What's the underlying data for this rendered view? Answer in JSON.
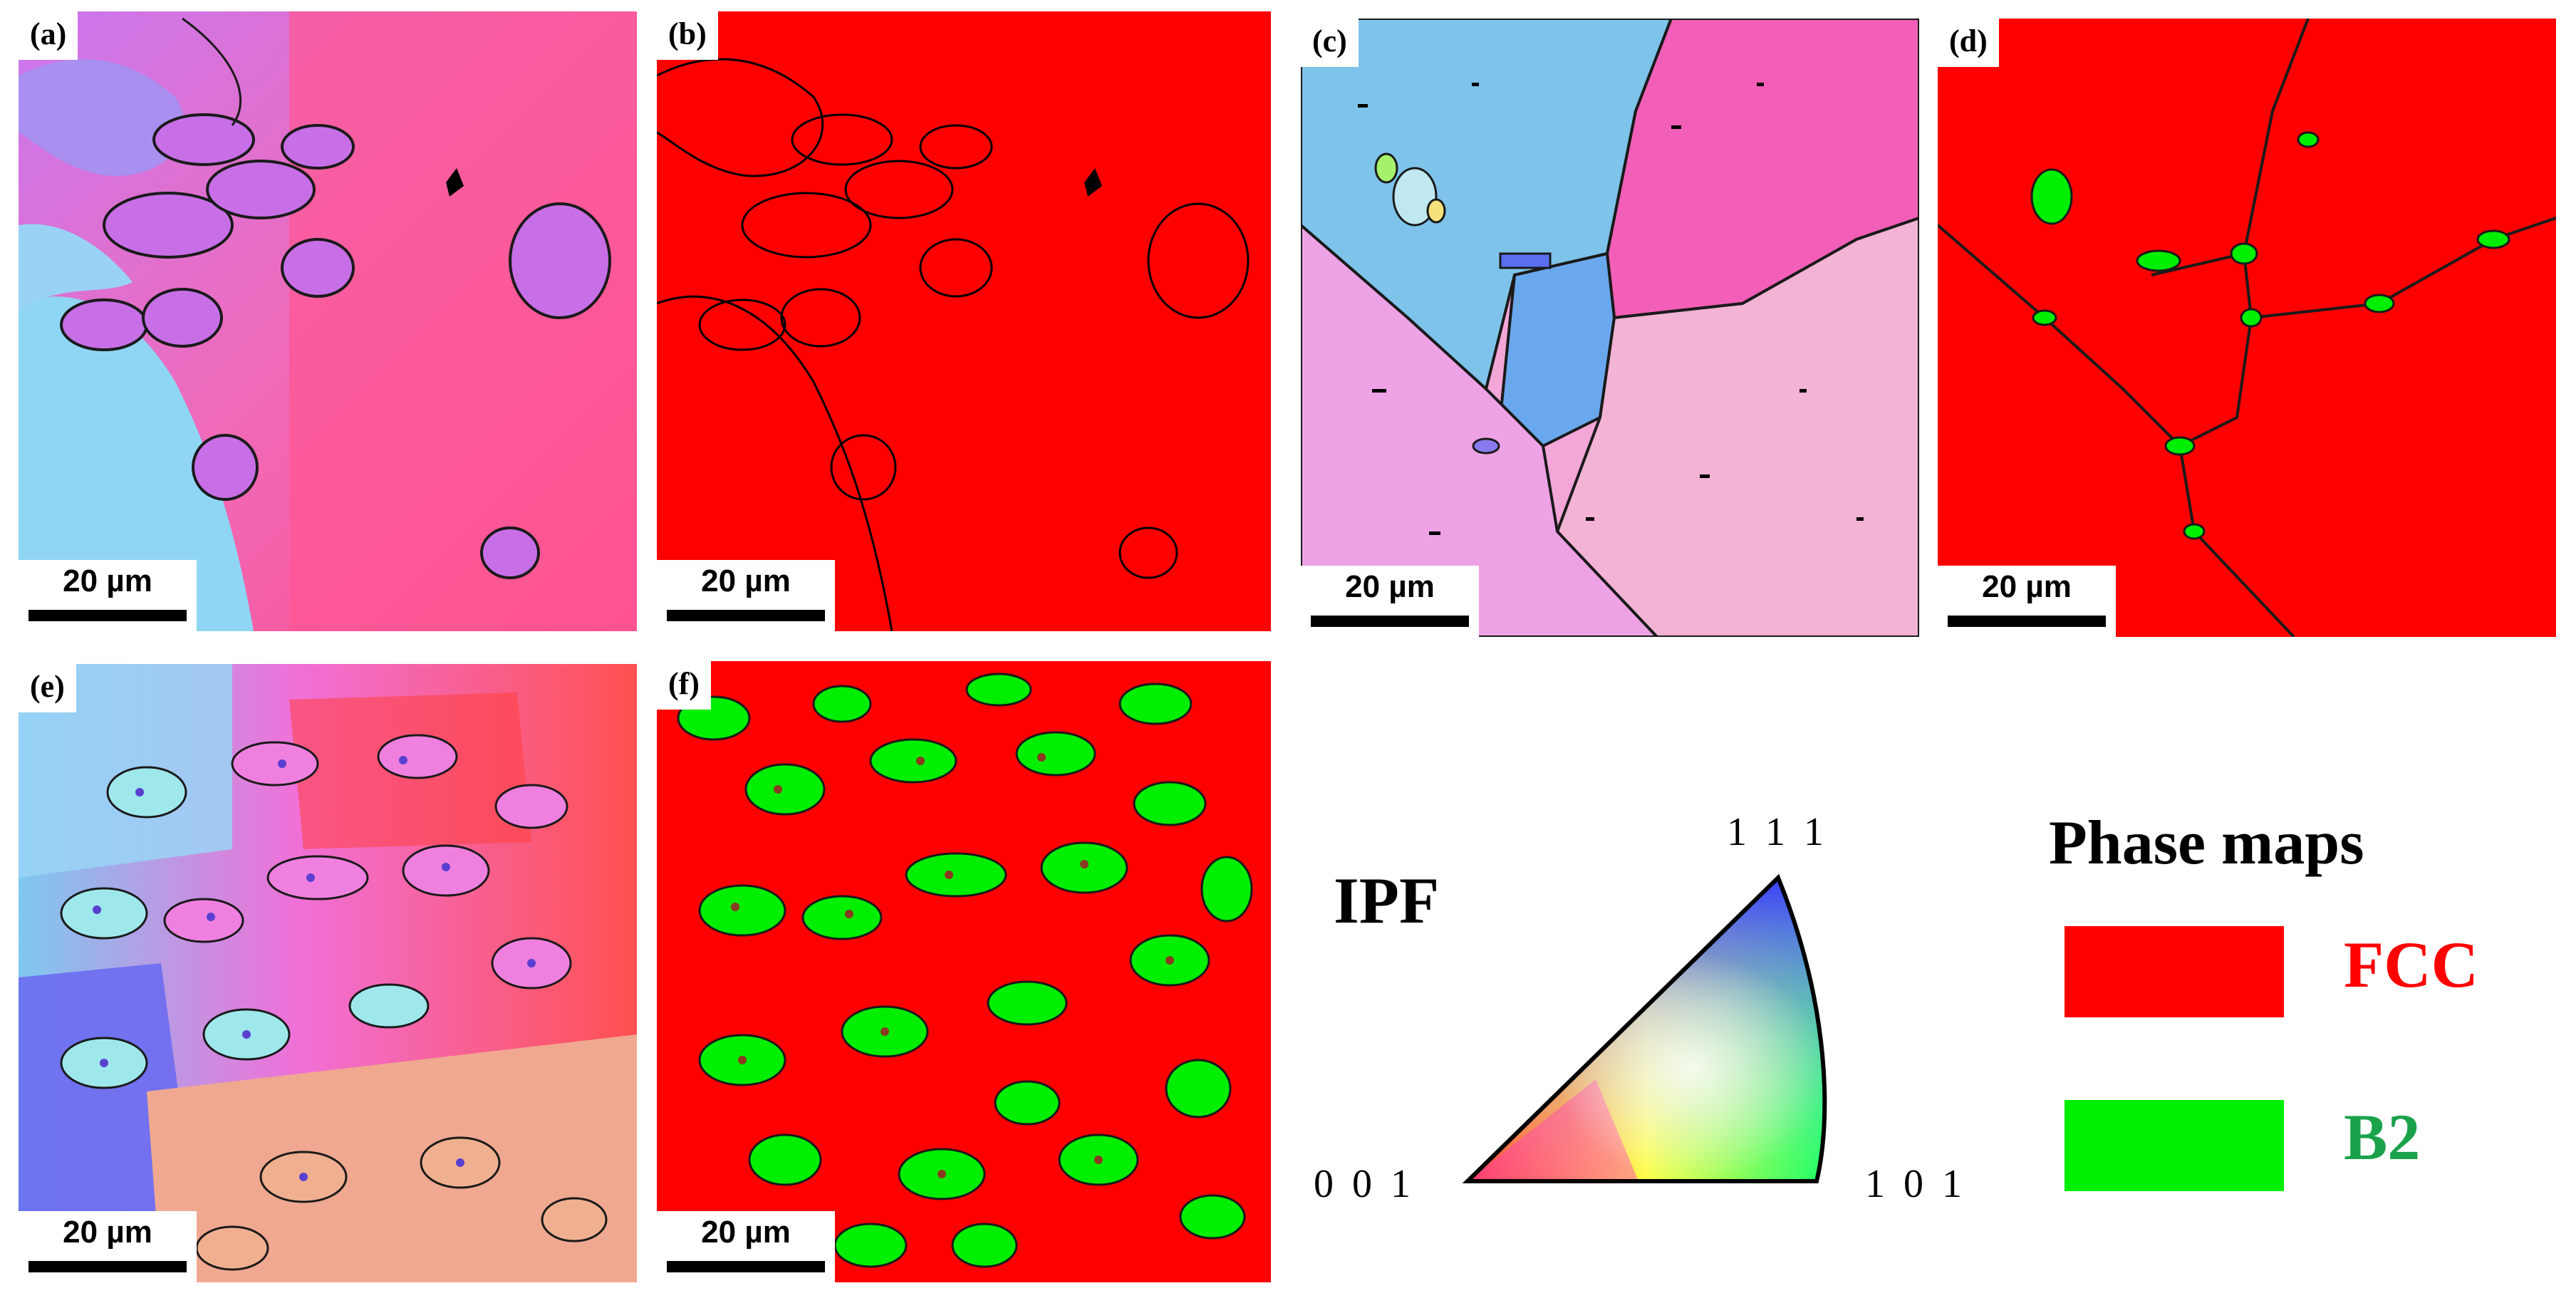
{
  "panels": [
    {
      "label": "(a)",
      "scale_bar": "20 µm",
      "map": "IPF"
    },
    {
      "label": "(b)",
      "scale_bar": "20 µm",
      "map": "Phase"
    },
    {
      "label": "(c)",
      "scale_bar": "20 µm",
      "map": "IPF"
    },
    {
      "label": "(d)",
      "scale_bar": "20 µm",
      "map": "Phase"
    },
    {
      "label": "(e)",
      "scale_bar": "20 µm",
      "map": "IPF"
    },
    {
      "label": "(f)",
      "scale_bar": "20 µm",
      "map": "Phase"
    }
  ],
  "ipf_legend": {
    "title": "IPF",
    "corners": {
      "top": "1 1 1",
      "left": "0 0 1",
      "right": "1 0 1"
    },
    "colors": {
      "001": "#ff0000",
      "101": "#00ff00",
      "111": "#0000ff"
    }
  },
  "phase_legend": {
    "title": "Phase maps",
    "items": [
      {
        "name": "FCC",
        "swatch_color": "#ff0000",
        "text_color": "#ff0000"
      },
      {
        "name": "B2",
        "swatch_color": "#00ee00",
        "text_color": "#1aa24a"
      }
    ]
  }
}
